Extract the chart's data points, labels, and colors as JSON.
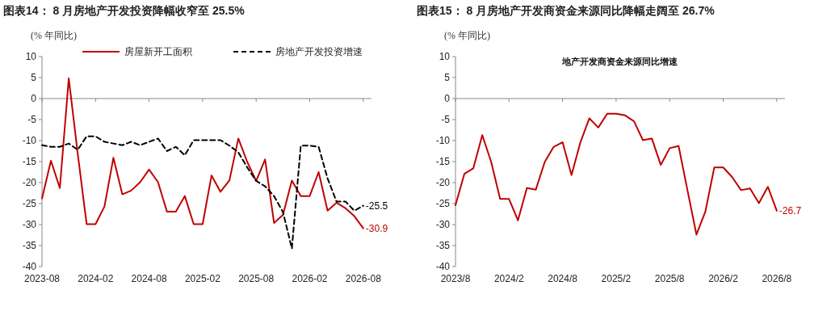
{
  "chart_data": [
    {
      "type": "line",
      "title": "图表14：  8 月房地产开发投资降幅收窄至 25.5%",
      "ylabel": "(% 年同比)",
      "categories": [
        "2023-08",
        null,
        null,
        null,
        null,
        null,
        "2024-02",
        null,
        null,
        null,
        null,
        null,
        "2024-08",
        null,
        null,
        null,
        null,
        null,
        "2025-02",
        null,
        null,
        null,
        null,
        null,
        "2025-08",
        null,
        null,
        null,
        null,
        null,
        "2026-02",
        null,
        null,
        null,
        null,
        null,
        "2026-08"
      ],
      "series": [
        {
          "name": "房屋新开工面积",
          "color": "#c00000",
          "line_style": "solid",
          "values": [
            -23.8,
            -14.8,
            -21.3,
            4.8,
            -13,
            -29.9,
            -29.9,
            -25.7,
            -14.1,
            -22.8,
            -21.9,
            -19.9,
            -16.9,
            -19.9,
            -26.9,
            -26.9,
            -23.2,
            -29.9,
            -29.9,
            -18.3,
            -22.2,
            -19.5,
            -9.5,
            -15.1,
            -19.6,
            -14.5,
            -29.6,
            -27.7,
            -19.5,
            -23.2,
            -23.2,
            -17.5,
            -26.7,
            -24.8,
            -26.1,
            -28,
            -30.9
          ]
        },
        {
          "name": "房地产开发投资增速",
          "color": "#000000",
          "line_style": "dashed",
          "values": [
            -11.1,
            -11.5,
            -11.5,
            -10.7,
            -12.2,
            -9,
            -9,
            -10.3,
            -10.7,
            -11.1,
            -10.3,
            -11.1,
            -10.3,
            -9.5,
            -12.5,
            -11.5,
            -13.5,
            -9.9,
            -9.9,
            -9.9,
            -9.9,
            -11.2,
            -12.8,
            -16.4,
            -19.6,
            -20.9,
            -23.2,
            -27,
            -35.7,
            -11.2,
            -11.2,
            -11.5,
            -19,
            -24.5,
            -24.5,
            -26.7,
            -25.5
          ]
        }
      ],
      "ylim": [
        -40,
        10
      ],
      "yticks": [
        -40,
        -35,
        -30,
        -25,
        -20,
        -15,
        -10,
        -5,
        0,
        5,
        10
      ],
      "legend": "top",
      "annotations": [
        {
          "text": "-30.9",
          "x": "2026-08",
          "y": -30.9
        },
        {
          "text": "-25.5",
          "x": "2026-08",
          "y": -25.5
        }
      ]
    },
    {
      "type": "line",
      "title": "图表15：  8 月房地产开发商资金来源同比降幅走阔至 26.7%",
      "subtitle": "地产开发商资金来源同比增速",
      "ylabel": "(% 年同比)",
      "categories": [
        "2023/8",
        null,
        null,
        null,
        null,
        null,
        "2024/2",
        null,
        null,
        null,
        null,
        null,
        "2024/8",
        null,
        null,
        null,
        null,
        null,
        "2025/2",
        null,
        null,
        null,
        null,
        null,
        "2025/8",
        null,
        null,
        null,
        null,
        null,
        "2026/2",
        null,
        null,
        null,
        null,
        null,
        "2026/8"
      ],
      "series": [
        {
          "color": "#c00000",
          "line_style": "solid",
          "values": [
            -25.4,
            -17.9,
            -16.6,
            -8.7,
            -15.1,
            -23.9,
            -23.9,
            -29,
            -21.3,
            -21.7,
            -15.1,
            -11.5,
            -10.4,
            -18.2,
            -10.4,
            -4.7,
            -6.9,
            -3.6,
            -3.6,
            -4,
            -5.4,
            -9.9,
            -9.5,
            -15.8,
            -11.8,
            -11.3,
            -21.9,
            -32.4,
            -26.9,
            -16.4,
            -16.4,
            -18.7,
            -21.8,
            -21.4,
            -24.9,
            -21,
            -26.7
          ]
        }
      ],
      "ylim": [
        -40,
        10
      ],
      "yticks": [
        -40,
        -35,
        -30,
        -25,
        -20,
        -15,
        -10,
        -5,
        0,
        5,
        10
      ],
      "legend": false,
      "annotations": [
        {
          "text": "-26.7",
          "x": "2026/8",
          "y": -26.7
        }
      ]
    }
  ]
}
